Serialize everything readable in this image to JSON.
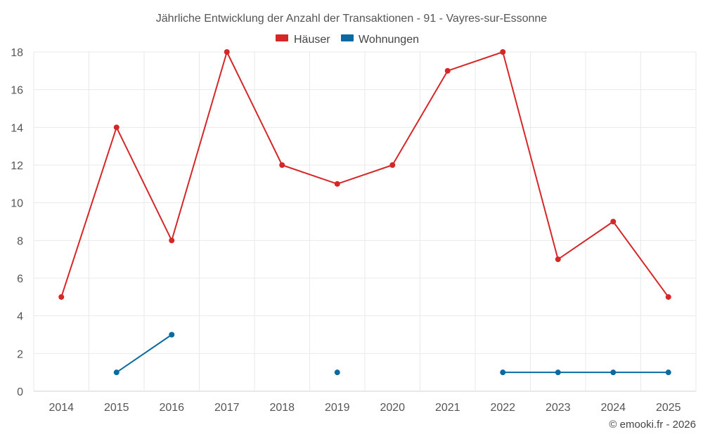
{
  "chart_data": {
    "type": "line",
    "title": "Jährliche Entwicklung der Anzahl der Transaktionen - 91 - Vayres-sur-Essonne",
    "categories": [
      "2014",
      "2015",
      "2016",
      "2017",
      "2018",
      "2019",
      "2020",
      "2021",
      "2022",
      "2023",
      "2024",
      "2025"
    ],
    "series": [
      {
        "name": "Häuser",
        "color": "#d62728",
        "values": [
          5,
          14,
          8,
          18,
          12,
          11,
          12,
          17,
          18,
          7,
          9,
          5
        ]
      },
      {
        "name": "Wohnungen",
        "color": "#0a6aa1",
        "values": [
          null,
          1,
          3,
          null,
          null,
          1,
          null,
          null,
          1,
          1,
          1,
          1
        ]
      }
    ],
    "ylim": [
      0,
      18
    ],
    "yticks": [
      0,
      2,
      4,
      6,
      8,
      10,
      12,
      14,
      16,
      18
    ],
    "xlabel": "",
    "ylabel": "",
    "grid": true,
    "legend_position": "top-center"
  },
  "credit": "© emooki.fr - 2026"
}
